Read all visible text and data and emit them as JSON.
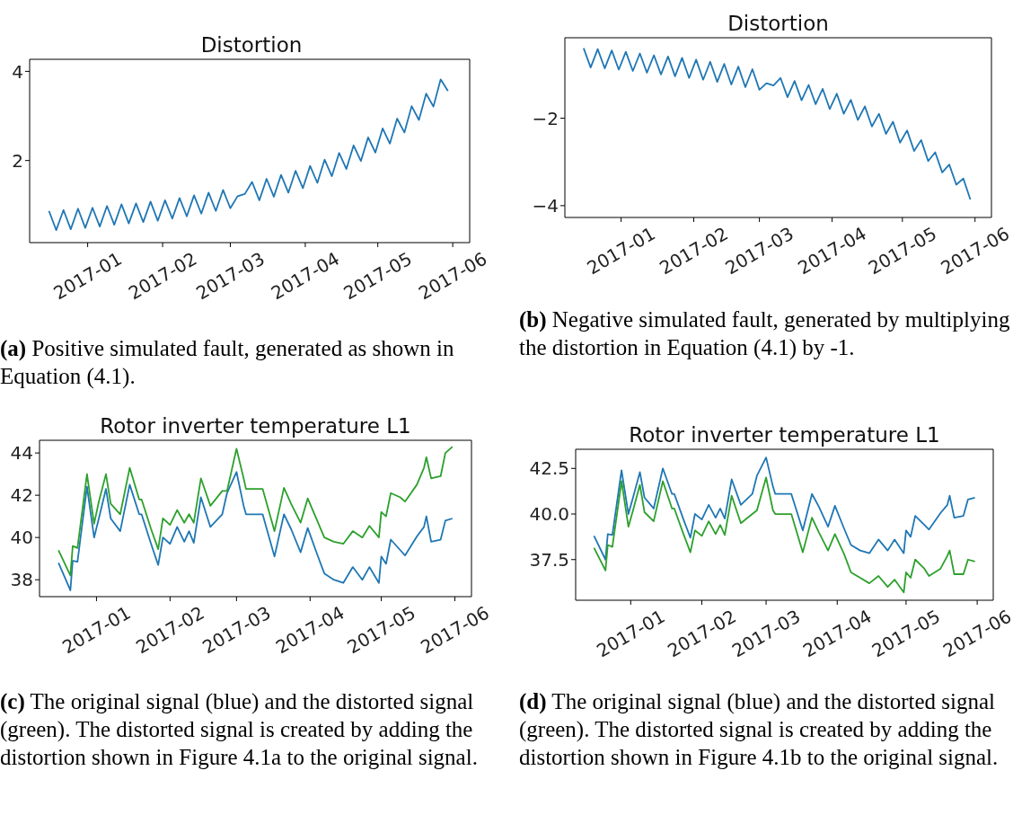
{
  "chart_data": [
    {
      "type": "line",
      "title": "Distortion",
      "annotations": [
        "(a) Positive simulated fault, generated as shown in Equation (4.1)."
      ],
      "x": [
        "2016-12-16",
        "2016-12-19",
        "2016-12-22",
        "2016-12-25",
        "2016-12-28",
        "2016-12-31",
        "2017-01-03",
        "2017-01-06",
        "2017-01-09",
        "2017-01-12",
        "2017-01-15",
        "2017-01-18",
        "2017-01-21",
        "2017-01-24",
        "2017-01-27",
        "2017-01-30",
        "2017-02-02",
        "2017-02-05",
        "2017-02-08",
        "2017-02-11",
        "2017-02-14",
        "2017-02-17",
        "2017-02-20",
        "2017-02-23",
        "2017-02-26",
        "2017-03-01",
        "2017-03-04",
        "2017-03-07",
        "2017-03-10",
        "2017-03-13",
        "2017-03-16",
        "2017-03-19",
        "2017-03-22",
        "2017-03-25",
        "2017-03-28",
        "2017-03-31",
        "2017-04-03",
        "2017-04-06",
        "2017-04-09",
        "2017-04-12",
        "2017-04-15",
        "2017-04-18",
        "2017-04-21",
        "2017-04-24",
        "2017-04-27",
        "2017-04-30",
        "2017-05-03",
        "2017-05-06",
        "2017-05-09",
        "2017-05-12",
        "2017-05-15",
        "2017-05-18",
        "2017-05-21",
        "2017-05-24",
        "2017-05-27",
        "2017-05-30"
      ],
      "series": [
        {
          "color": "#1f77b4",
          "values": [
            0.87,
            0.44,
            0.89,
            0.46,
            0.92,
            0.49,
            0.94,
            0.52,
            0.98,
            0.56,
            1.02,
            0.59,
            1.04,
            0.62,
            1.08,
            0.65,
            1.11,
            0.7,
            1.16,
            0.75,
            1.22,
            0.81,
            1.28,
            0.87,
            1.34,
            0.93,
            1.2,
            1.25,
            1.52,
            1.11,
            1.59,
            1.19,
            1.68,
            1.28,
            1.77,
            1.38,
            1.88,
            1.5,
            2.02,
            1.65,
            2.17,
            1.81,
            2.34,
            1.99,
            2.52,
            2.18,
            2.72,
            2.38,
            2.94,
            2.63,
            3.22,
            2.91,
            3.5,
            3.21,
            3.82,
            3.56
          ]
        }
      ],
      "xlim": [
        "2016-12-08",
        "2017-06-08"
      ],
      "xticks": [
        "2017-01",
        "2017-02",
        "2017-03",
        "2017-04",
        "2017-05",
        "2017-06"
      ],
      "ylim": [
        0.16,
        4.27
      ],
      "yticks": [
        2,
        4
      ]
    },
    {
      "type": "line",
      "title": "Distortion",
      "annotations": [
        "(b) Negative simulated fault, generated by multiplying the distortion in Equation (4.1) by -1."
      ],
      "x": [
        "2016-12-16",
        "2016-12-19",
        "2016-12-22",
        "2016-12-25",
        "2016-12-28",
        "2016-12-31",
        "2017-01-03",
        "2017-01-06",
        "2017-01-09",
        "2017-01-12",
        "2017-01-15",
        "2017-01-18",
        "2017-01-21",
        "2017-01-24",
        "2017-01-27",
        "2017-01-30",
        "2017-02-02",
        "2017-02-05",
        "2017-02-08",
        "2017-02-11",
        "2017-02-14",
        "2017-02-17",
        "2017-02-20",
        "2017-02-23",
        "2017-02-26",
        "2017-03-01",
        "2017-03-04",
        "2017-03-07",
        "2017-03-10",
        "2017-03-13",
        "2017-03-16",
        "2017-03-19",
        "2017-03-22",
        "2017-03-25",
        "2017-03-28",
        "2017-03-31",
        "2017-04-03",
        "2017-04-06",
        "2017-04-09",
        "2017-04-12",
        "2017-04-15",
        "2017-04-18",
        "2017-04-21",
        "2017-04-24",
        "2017-04-27",
        "2017-04-30",
        "2017-05-03",
        "2017-05-06",
        "2017-05-09",
        "2017-05-12",
        "2017-05-15",
        "2017-05-18",
        "2017-05-21",
        "2017-05-24",
        "2017-05-27",
        "2017-05-30"
      ],
      "series": [
        {
          "color": "#1f77b4",
          "values": [
            -0.4,
            -0.84,
            -0.42,
            -0.86,
            -0.45,
            -0.89,
            -0.48,
            -0.92,
            -0.52,
            -0.96,
            -0.56,
            -1.0,
            -0.59,
            -1.04,
            -0.62,
            -1.08,
            -0.66,
            -1.12,
            -0.71,
            -1.17,
            -0.76,
            -1.23,
            -0.82,
            -1.29,
            -0.88,
            -1.35,
            -1.2,
            -1.25,
            -1.08,
            -1.52,
            -1.15,
            -1.59,
            -1.24,
            -1.68,
            -1.33,
            -1.79,
            -1.44,
            -1.9,
            -1.58,
            -2.04,
            -1.73,
            -2.19,
            -1.9,
            -2.36,
            -2.08,
            -2.56,
            -2.28,
            -2.75,
            -2.5,
            -2.98,
            -2.78,
            -3.24,
            -3.06,
            -3.52,
            -3.38,
            -3.86
          ]
        }
      ],
      "xlim": [
        "2016-12-08",
        "2017-06-08"
      ],
      "xticks": [
        "2017-01",
        "2017-02",
        "2017-03",
        "2017-04",
        "2017-05",
        "2017-06"
      ],
      "ylim": [
        -4.27,
        -0.16
      ],
      "yticks": [
        {
          "value": -2,
          "label": "−2"
        },
        {
          "value": -4,
          "label": "−4"
        }
      ]
    },
    {
      "type": "line",
      "title": "Rotor inverter temperature L1",
      "annotations": [
        "(c) The original signal (blue) and the distorted signal (green). The distorted signal is created by adding the distortion shown in Figure 4.1a to the original signal."
      ],
      "x": [
        "2016-12-16",
        "2016-12-21",
        "2016-12-22",
        "2016-12-24",
        "2016-12-28",
        "2016-12-31",
        "2017-01-02",
        "2017-01-05",
        "2017-01-07",
        "2017-01-11",
        "2017-01-15",
        "2017-01-19",
        "2017-01-20",
        "2017-01-24",
        "2017-01-27",
        "2017-01-29",
        "2017-02-01",
        "2017-02-04",
        "2017-02-07",
        "2017-02-09",
        "2017-02-11",
        "2017-02-14",
        "2017-02-18",
        "2017-02-23",
        "2017-02-25",
        "2017-03-01",
        "2017-03-04",
        "2017-03-05",
        "2017-03-12",
        "2017-03-17",
        "2017-03-21",
        "2017-03-24",
        "2017-03-28",
        "2017-03-31",
        "2017-04-04",
        "2017-04-07",
        "2017-04-11",
        "2017-04-15",
        "2017-04-19",
        "2017-04-23",
        "2017-04-26",
        "2017-04-30",
        "2017-05-01",
        "2017-05-03",
        "2017-05-05",
        "2017-05-09",
        "2017-05-11",
        "2017-05-16",
        "2017-05-19",
        "2017-05-20",
        "2017-05-22",
        "2017-05-26",
        "2017-05-28",
        "2017-05-31"
      ],
      "series": [
        {
          "color": "#1f77b4",
          "values": [
            38.8,
            37.5,
            38.9,
            38.85,
            42.4,
            40.0,
            40.9,
            42.3,
            40.9,
            40.3,
            42.5,
            41.1,
            41.1,
            39.7,
            38.7,
            40.0,
            39.7,
            40.5,
            39.8,
            40.3,
            39.75,
            41.9,
            40.5,
            41.1,
            42.1,
            43.1,
            41.5,
            41.1,
            41.1,
            39.1,
            41.1,
            40.4,
            39.3,
            40.45,
            39.2,
            38.3,
            38.0,
            37.85,
            38.6,
            38.0,
            38.6,
            37.85,
            39.1,
            38.75,
            39.9,
            39.4,
            39.15,
            40.05,
            40.5,
            41.0,
            39.8,
            39.9,
            40.8,
            40.9
          ]
        },
        {
          "color": "#2ca02c",
          "values": [
            39.4,
            38.2,
            39.6,
            39.5,
            43.0,
            40.65,
            41.7,
            43.0,
            41.6,
            41.1,
            43.3,
            41.8,
            41.8,
            40.4,
            39.45,
            40.9,
            40.6,
            41.3,
            40.7,
            41.1,
            40.7,
            42.8,
            41.5,
            42.2,
            42.2,
            44.2,
            42.8,
            42.3,
            42.3,
            40.3,
            42.35,
            41.6,
            40.7,
            41.85,
            40.8,
            40.0,
            39.8,
            39.7,
            40.3,
            40.0,
            40.55,
            40.0,
            41.2,
            41.0,
            42.1,
            41.9,
            41.7,
            42.5,
            43.3,
            43.8,
            42.8,
            42.9,
            44.0,
            44.3
          ]
        }
      ],
      "xlim": [
        "2016-12-08",
        "2017-06-08"
      ],
      "xticks": [
        "2017-01",
        "2017-02",
        "2017-03",
        "2017-04",
        "2017-05",
        "2017-06"
      ],
      "ylim": [
        37.2,
        44.6
      ],
      "yticks": [
        38,
        40,
        42,
        44
      ]
    },
    {
      "type": "line",
      "title": "Rotor inverter temperature L1",
      "annotations": [
        "(d) The original signal (blue) and the distorted signal (green). The distorted signal is created by adding the distortion shown in Figure 4.1b to the original signal."
      ],
      "x": [
        "2016-12-16",
        "2016-12-21",
        "2016-12-22",
        "2016-12-24",
        "2016-12-28",
        "2016-12-31",
        "2017-01-02",
        "2017-01-05",
        "2017-01-07",
        "2017-01-11",
        "2017-01-15",
        "2017-01-19",
        "2017-01-20",
        "2017-01-24",
        "2017-01-27",
        "2017-01-29",
        "2017-02-01",
        "2017-02-04",
        "2017-02-07",
        "2017-02-09",
        "2017-02-11",
        "2017-02-14",
        "2017-02-18",
        "2017-02-23",
        "2017-02-25",
        "2017-03-01",
        "2017-03-04",
        "2017-03-05",
        "2017-03-12",
        "2017-03-17",
        "2017-03-21",
        "2017-03-24",
        "2017-03-28",
        "2017-03-31",
        "2017-04-04",
        "2017-04-07",
        "2017-04-11",
        "2017-04-15",
        "2017-04-19",
        "2017-04-23",
        "2017-04-26",
        "2017-04-30",
        "2017-05-01",
        "2017-05-03",
        "2017-05-05",
        "2017-05-09",
        "2017-05-11",
        "2017-05-16",
        "2017-05-19",
        "2017-05-20",
        "2017-05-22",
        "2017-05-26",
        "2017-05-28",
        "2017-05-31"
      ],
      "series": [
        {
          "color": "#1f77b4",
          "values": [
            38.8,
            37.5,
            38.9,
            38.85,
            42.4,
            40.0,
            40.9,
            42.3,
            40.9,
            40.3,
            42.5,
            41.1,
            41.1,
            39.7,
            38.7,
            40.0,
            39.7,
            40.5,
            39.8,
            40.3,
            39.75,
            41.9,
            40.5,
            41.1,
            42.1,
            43.1,
            41.5,
            41.1,
            41.1,
            39.1,
            41.1,
            40.4,
            39.3,
            40.45,
            39.2,
            38.3,
            38.0,
            37.85,
            38.6,
            38.0,
            38.6,
            37.85,
            39.1,
            38.75,
            39.9,
            39.4,
            39.15,
            40.05,
            40.5,
            41.0,
            39.8,
            39.9,
            40.8,
            40.9
          ]
        },
        {
          "color": "#2ca02c",
          "values": [
            38.15,
            36.9,
            38.3,
            38.2,
            41.8,
            39.3,
            40.2,
            41.6,
            40.1,
            39.6,
            41.8,
            40.3,
            40.3,
            38.9,
            37.9,
            39.1,
            38.8,
            39.6,
            38.9,
            39.4,
            38.85,
            41.0,
            39.5,
            40.0,
            40.2,
            42.0,
            40.2,
            40.0,
            40.0,
            37.9,
            39.8,
            39.0,
            38.0,
            38.9,
            37.8,
            36.8,
            36.5,
            36.2,
            36.6,
            36.0,
            36.4,
            35.7,
            36.8,
            36.5,
            37.5,
            37.0,
            36.6,
            37.0,
            37.7,
            38.0,
            36.7,
            36.7,
            37.5,
            37.4
          ]
        }
      ],
      "xlim": [
        "2016-12-08",
        "2017-06-08"
      ],
      "xticks": [
        "2017-01",
        "2017-02",
        "2017-03",
        "2017-04",
        "2017-05",
        "2017-06"
      ],
      "ylim": [
        35.27,
        43.55
      ],
      "yticks": [
        {
          "value": 37.5,
          "label": "37.5"
        },
        {
          "value": 40,
          "label": "40.0"
        },
        {
          "value": 42.5,
          "label": "42.5"
        }
      ]
    }
  ]
}
